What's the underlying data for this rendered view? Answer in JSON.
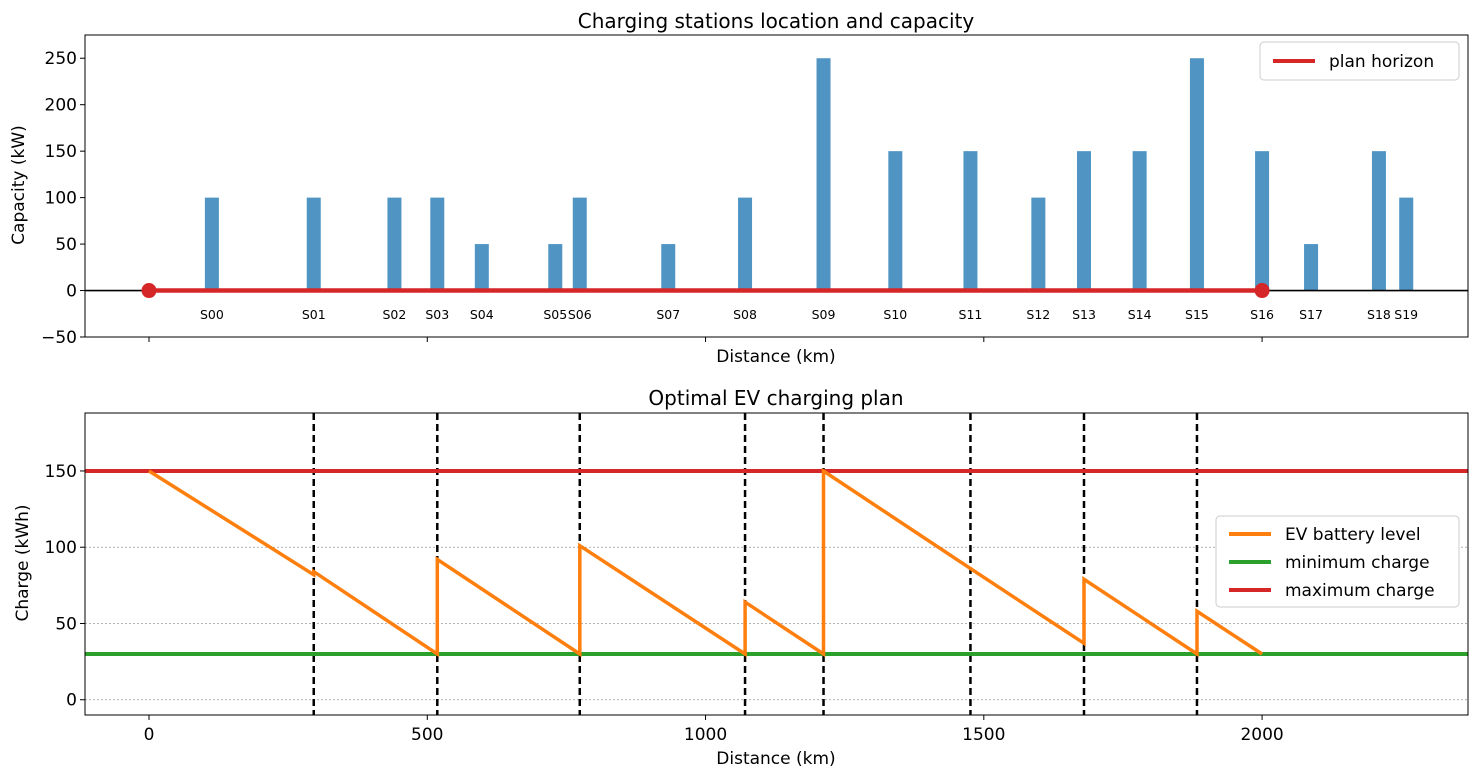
{
  "chart_data": [
    {
      "type": "bar",
      "title": "Charging stations location and capacity",
      "xlabel": "Distance (km)",
      "ylabel": "Capacity (kW)",
      "xlim": [
        -115,
        2370
      ],
      "ylim": [
        -50,
        275
      ],
      "yticks": [
        -50,
        0,
        50,
        100,
        150,
        200,
        250
      ],
      "xticks": [
        0,
        500,
        1000,
        1500,
        2000
      ],
      "show_x_tick_labels": false,
      "zero_line": true,
      "legend_position": "upper right",
      "colors": {
        "bar": "#4f94c3",
        "horizon": "#d62728",
        "zero": "#000000"
      },
      "stations": [
        {
          "name": "S00",
          "distance": 113,
          "capacity": 100
        },
        {
          "name": "S01",
          "distance": 296,
          "capacity": 100
        },
        {
          "name": "S02",
          "distance": 441,
          "capacity": 100
        },
        {
          "name": "S03",
          "distance": 518,
          "capacity": 100
        },
        {
          "name": "S04",
          "distance": 598,
          "capacity": 50
        },
        {
          "name": "S05",
          "distance": 730,
          "capacity": 50
        },
        {
          "name": "S06",
          "distance": 774,
          "capacity": 100
        },
        {
          "name": "S07",
          "distance": 933,
          "capacity": 50
        },
        {
          "name": "S08",
          "distance": 1071,
          "capacity": 100
        },
        {
          "name": "S09",
          "distance": 1212,
          "capacity": 250
        },
        {
          "name": "S10",
          "distance": 1341,
          "capacity": 150
        },
        {
          "name": "S11",
          "distance": 1476,
          "capacity": 150
        },
        {
          "name": "S12",
          "distance": 1598,
          "capacity": 100
        },
        {
          "name": "S13",
          "distance": 1680,
          "capacity": 150
        },
        {
          "name": "S14",
          "distance": 1780,
          "capacity": 150
        },
        {
          "name": "S15",
          "distance": 1883,
          "capacity": 250
        },
        {
          "name": "S16",
          "distance": 2000,
          "capacity": 150
        },
        {
          "name": "S17",
          "distance": 2088,
          "capacity": 50
        },
        {
          "name": "S18",
          "distance": 2210,
          "capacity": 150
        },
        {
          "name": "S19",
          "distance": 2259,
          "capacity": 100
        }
      ],
      "plan_horizon": {
        "label": "plan horizon",
        "start": 0,
        "end": 2000,
        "y": 0
      }
    },
    {
      "type": "line",
      "title": "Optimal EV charging plan",
      "xlabel": "Distance (km)",
      "ylabel": "Charge (kWh)",
      "xlim": [
        -115,
        2370
      ],
      "ylim": [
        -10,
        188
      ],
      "xticks": [
        0,
        500,
        1000,
        1500,
        2000
      ],
      "yticks": [
        0,
        50,
        100,
        150
      ],
      "grid": "horizontal dotted",
      "legend_position": "center right",
      "colors": {
        "battery": "#ff7f0e",
        "min": "#2ca02c",
        "max": "#d62728",
        "stop": "#000000"
      },
      "series": [
        {
          "name": "EV battery level",
          "points": [
            [
              0,
              150
            ],
            [
              296,
              82
            ],
            [
              296,
              84
            ],
            [
              518,
              30
            ],
            [
              518,
              92
            ],
            [
              774,
              30
            ],
            [
              774,
              101
            ],
            [
              1071,
              30
            ],
            [
              1071,
              64
            ],
            [
              1212,
              30
            ],
            [
              1212,
              150
            ],
            [
              1476,
              86
            ],
            [
              1680,
              37
            ],
            [
              1680,
              79
            ],
            [
              1883,
              30
            ],
            [
              1883,
              58
            ],
            [
              2000,
              30
            ]
          ]
        },
        {
          "name": "minimum charge",
          "y": 30
        },
        {
          "name": "maximum charge",
          "y": 150
        }
      ],
      "charging_stops": [
        296,
        518,
        774,
        1071,
        1212,
        1476,
        1680,
        1883
      ]
    }
  ]
}
